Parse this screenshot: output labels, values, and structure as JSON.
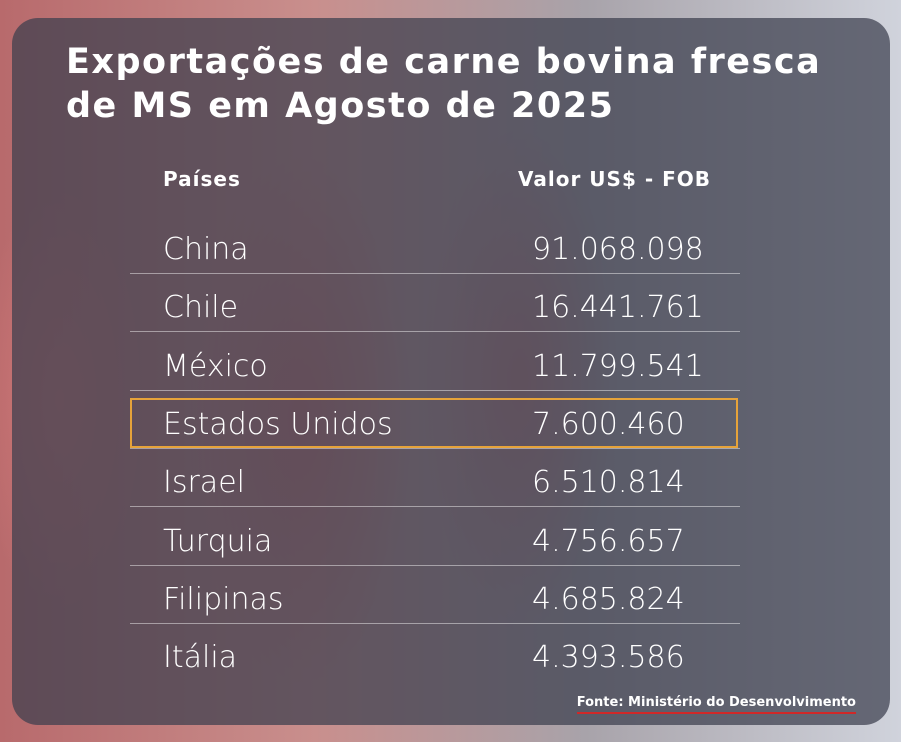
{
  "header": {
    "title_lines": [
      "Exportações de carne bovina fresca",
      "de MS em Agosto de 2025"
    ]
  },
  "table": {
    "headers": [
      "Países",
      "Valor US$ - FOB"
    ],
    "rows": [
      [
        "China",
        "91.068.098"
      ],
      [
        "Chile",
        "16.441.761"
      ],
      [
        "México",
        "11.799.541"
      ],
      [
        "Estados Unidos",
        "7.600.460"
      ],
      [
        "Israel",
        "6.510.814"
      ],
      [
        "Turquia",
        "4.756.657"
      ],
      [
        "Filipinas",
        "4.685.824"
      ],
      [
        "Itália",
        "4.393.586"
      ]
    ]
  },
  "footer": {
    "source": "Fonte: Ministério do Desenvolvimento"
  }
}
